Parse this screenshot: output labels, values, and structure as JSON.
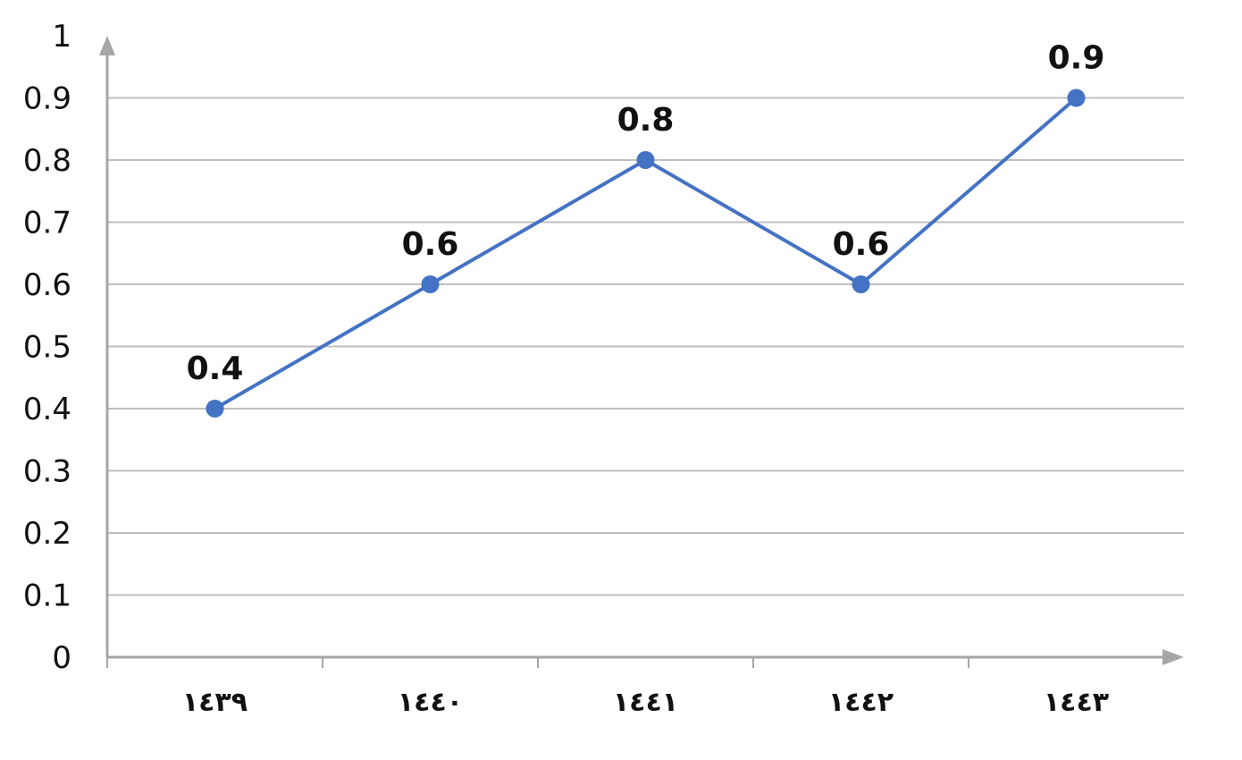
{
  "chart_data": {
    "type": "line",
    "categories": [
      "١٤٣٩",
      "١٤٤٠",
      "١٤٤١",
      "١٤٤٢",
      "١٤٤٣"
    ],
    "series": [
      {
        "values": [
          0.4,
          0.6,
          0.8,
          0.6,
          0.9
        ],
        "color": "#4472C4"
      }
    ],
    "data_labels": [
      "0.4",
      "0.6",
      "0.8",
      "0.6",
      "0.9"
    ],
    "y_ticks": [
      "0",
      "0.1",
      "0.2",
      "0.3",
      "0.4",
      "0.5",
      "0.6",
      "0.7",
      "0.8",
      "0.9",
      "1"
    ],
    "title": "",
    "xlabel": "",
    "ylabel": "",
    "ylim": [
      0,
      1
    ],
    "grid": true,
    "legend": "none",
    "colors": {
      "line": "#4472C4",
      "grid": "#BFBFBF",
      "axis": "#A6A6A6"
    }
  }
}
